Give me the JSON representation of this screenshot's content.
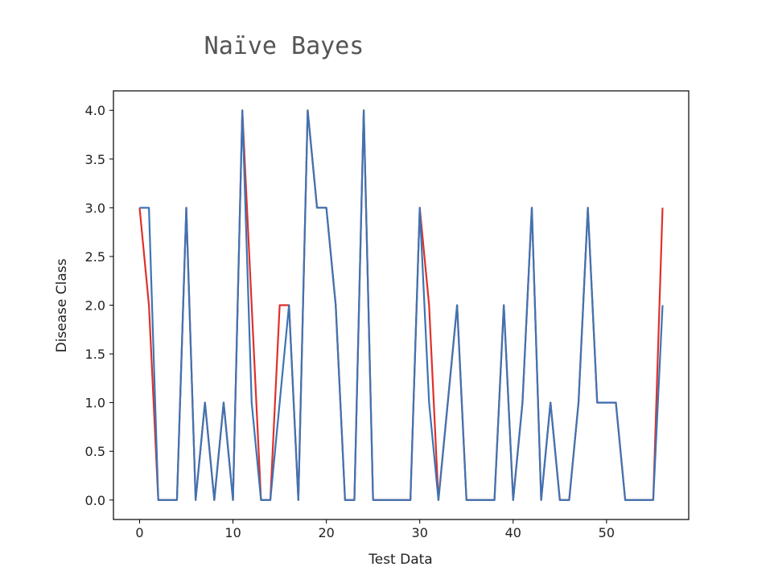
{
  "chart_data": {
    "type": "line",
    "title": "Naïve Bayes",
    "xlabel": "Test Data",
    "ylabel": "Disease Class",
    "xlim": [
      -2.8,
      58.8
    ],
    "ylim": [
      -0.2,
      4.2
    ],
    "x_ticks": [
      0,
      10,
      20,
      30,
      40,
      50
    ],
    "y_ticks": [
      0.0,
      0.5,
      1.0,
      1.5,
      2.0,
      2.5,
      3.0,
      3.5,
      4.0
    ],
    "x_tick_labels": [
      "0",
      "10",
      "20",
      "30",
      "40",
      "50"
    ],
    "y_tick_labels": [
      "0.0",
      "0.5",
      "1.0",
      "1.5",
      "2.0",
      "2.5",
      "3.0",
      "3.5",
      "4.0"
    ],
    "grid": false,
    "series": [
      {
        "color": "#e0302a",
        "values": [
          3,
          2,
          0,
          0,
          0,
          3,
          0,
          1,
          0,
          1,
          0,
          4,
          2,
          0,
          0,
          2,
          2,
          0,
          4,
          3,
          3,
          2,
          0,
          0,
          4,
          0,
          0,
          0,
          0,
          0,
          3,
          2,
          0,
          1,
          2,
          0,
          0,
          0,
          0,
          2,
          0,
          1,
          3,
          0,
          1,
          0,
          0,
          1,
          3,
          1,
          1,
          1,
          0,
          0,
          0,
          0,
          3
        ]
      },
      {
        "color": "#3d74b4",
        "values": [
          3,
          3,
          0,
          0,
          0,
          3,
          0,
          1,
          0,
          1,
          0,
          4,
          1,
          0,
          0,
          1,
          2,
          0,
          4,
          3,
          3,
          2,
          0,
          0,
          4,
          0,
          0,
          0,
          0,
          0,
          3,
          1,
          0,
          1,
          2,
          0,
          0,
          0,
          0,
          2,
          0,
          1,
          3,
          0,
          1,
          0,
          0,
          1,
          3,
          1,
          1,
          1,
          0,
          0,
          0,
          0,
          2
        ]
      }
    ]
  }
}
